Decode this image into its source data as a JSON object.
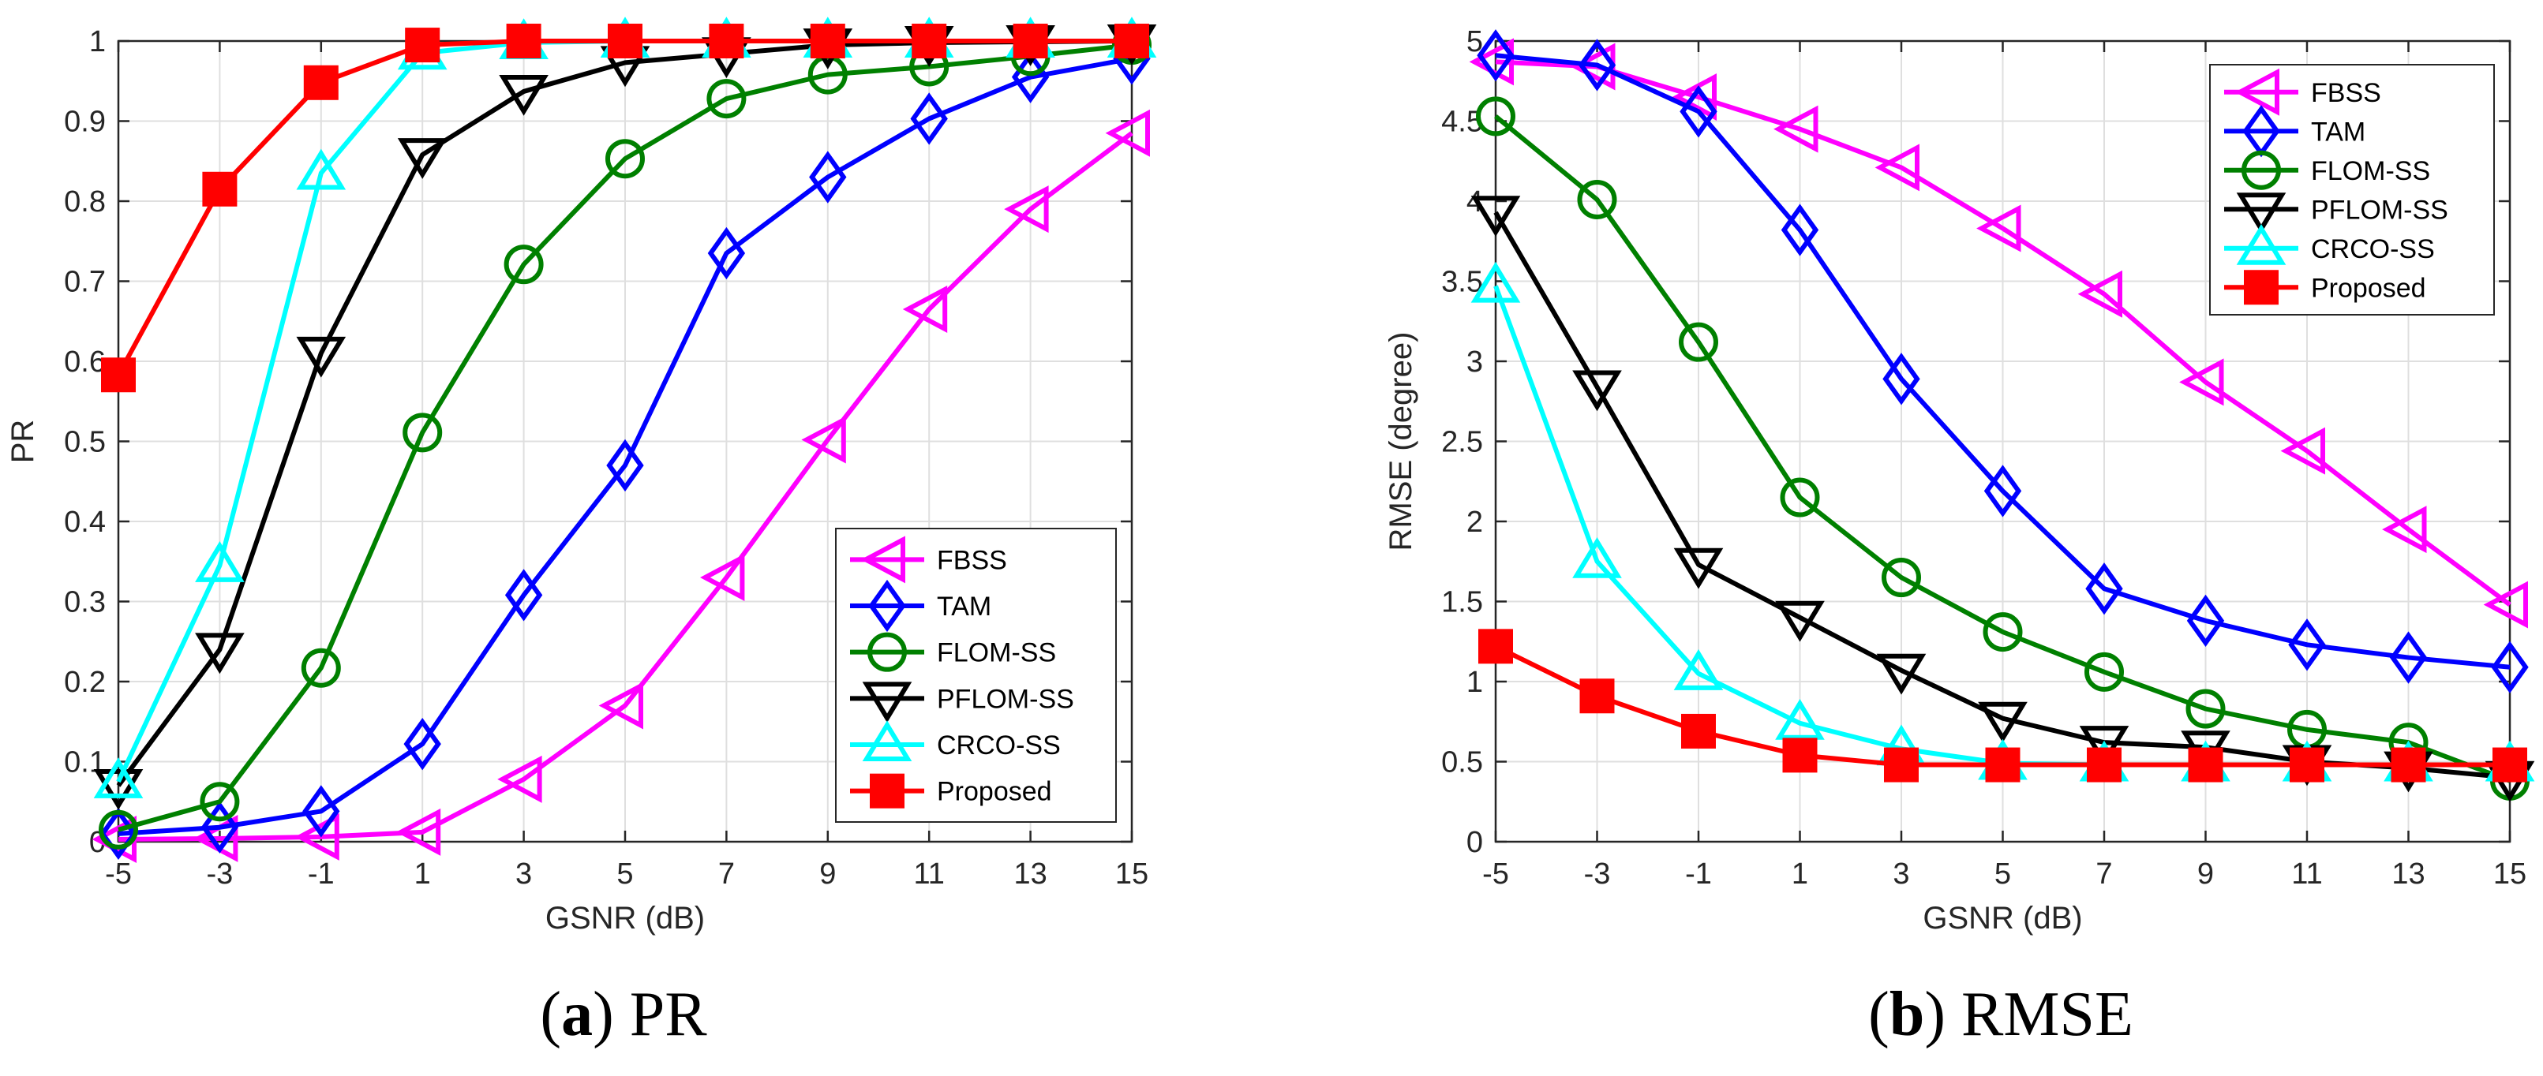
{
  "chart_data": [
    {
      "type": "line",
      "caption_letter": "a",
      "caption_title": "PR",
      "xlabel": "GSNR (dB)",
      "ylabel": "PR",
      "xlim": [
        -5,
        15
      ],
      "ylim": [
        0,
        1
      ],
      "x": [
        -5,
        -3,
        -1,
        1,
        3,
        5,
        7,
        9,
        11,
        13,
        15
      ],
      "xticks": [
        "-5",
        "-3",
        "-1",
        "1",
        "3",
        "5",
        "7",
        "9",
        "11",
        "13",
        "15"
      ],
      "yticks": [
        "0",
        "0.1",
        "0.2",
        "0.3",
        "0.4",
        "0.5",
        "0.6",
        "0.7",
        "0.8",
        "0.9",
        "1"
      ],
      "grid": true,
      "legend_position": "bottom-right",
      "series": [
        {
          "name": "FBSS",
          "color": "#ff00ff",
          "marker": "triangle-left",
          "values": [
            0.003,
            0.004,
            0.006,
            0.012,
            0.078,
            0.17,
            0.33,
            0.502,
            0.665,
            0.79,
            0.885
          ]
        },
        {
          "name": "TAM",
          "color": "#0000ff",
          "marker": "diamond",
          "values": [
            0.01,
            0.018,
            0.038,
            0.122,
            0.308,
            0.47,
            0.735,
            0.83,
            0.903,
            0.955,
            0.978
          ]
        },
        {
          "name": "FLOM-SS",
          "color": "#008000",
          "marker": "circle",
          "values": [
            0.015,
            0.05,
            0.217,
            0.511,
            0.721,
            0.853,
            0.928,
            0.958,
            0.968,
            0.981,
            0.995
          ]
        },
        {
          "name": "PFLOM-SS",
          "color": "#000000",
          "marker": "triangle-down",
          "values": [
            0.07,
            0.24,
            0.61,
            0.858,
            0.937,
            0.973,
            0.984,
            0.995,
            0.998,
            0.999,
            1.0
          ]
        },
        {
          "name": "CRCO-SS",
          "color": "#00ffff",
          "marker": "triangle-up",
          "values": [
            0.075,
            0.345,
            0.835,
            0.985,
            0.998,
            1.0,
            1.0,
            1.0,
            1.0,
            1.0,
            1.0
          ]
        },
        {
          "name": "Proposed",
          "color": "#ff0000",
          "marker": "square",
          "values": [
            0.583,
            0.815,
            0.948,
            0.995,
            1.0,
            1.0,
            1.0,
            1.0,
            1.0,
            1.0,
            1.0
          ]
        }
      ]
    },
    {
      "type": "line",
      "caption_letter": "b",
      "caption_title": "RMSE",
      "xlabel": "GSNR (dB)",
      "ylabel": "RMSE (degree)",
      "xlim": [
        -5,
        15
      ],
      "ylim": [
        0,
        5
      ],
      "x": [
        -5,
        -3,
        -1,
        1,
        3,
        5,
        7,
        9,
        11,
        13,
        15
      ],
      "xticks": [
        "-5",
        "-3",
        "-1",
        "1",
        "3",
        "5",
        "7",
        "9",
        "11",
        "13",
        "15"
      ],
      "yticks": [
        "0",
        "0.5",
        "1",
        "1.5",
        "2",
        "2.5",
        "3",
        "3.5",
        "4",
        "4.5",
        "5"
      ],
      "grid": true,
      "legend_position": "top-right",
      "series": [
        {
          "name": "FBSS",
          "color": "#ff00ff",
          "marker": "triangle-left",
          "values": [
            4.87,
            4.84,
            4.65,
            4.45,
            4.21,
            3.83,
            3.42,
            2.87,
            2.44,
            1.95,
            1.48
          ]
        },
        {
          "name": "TAM",
          "color": "#0000ff",
          "marker": "diamond",
          "values": [
            4.91,
            4.85,
            4.56,
            3.82,
            2.89,
            2.19,
            1.58,
            1.38,
            1.23,
            1.15,
            1.09
          ]
        },
        {
          "name": "FLOM-SS",
          "color": "#008000",
          "marker": "circle",
          "values": [
            4.53,
            4.01,
            3.12,
            2.15,
            1.65,
            1.31,
            1.06,
            0.83,
            0.7,
            0.62,
            0.38
          ]
        },
        {
          "name": "PFLOM-SS",
          "color": "#000000",
          "marker": "triangle-down",
          "values": [
            3.93,
            2.84,
            1.73,
            1.4,
            1.07,
            0.77,
            0.62,
            0.59,
            0.5,
            0.46,
            0.4
          ]
        },
        {
          "name": "CRCO-SS",
          "color": "#00ffff",
          "marker": "triangle-up",
          "values": [
            3.47,
            1.75,
            1.05,
            0.74,
            0.58,
            0.49,
            0.48,
            0.48,
            0.48,
            0.48,
            0.48
          ]
        },
        {
          "name": "Proposed",
          "color": "#ff0000",
          "marker": "square",
          "values": [
            1.22,
            0.91,
            0.69,
            0.54,
            0.48,
            0.48,
            0.48,
            0.48,
            0.48,
            0.48,
            0.48
          ]
        }
      ]
    }
  ]
}
